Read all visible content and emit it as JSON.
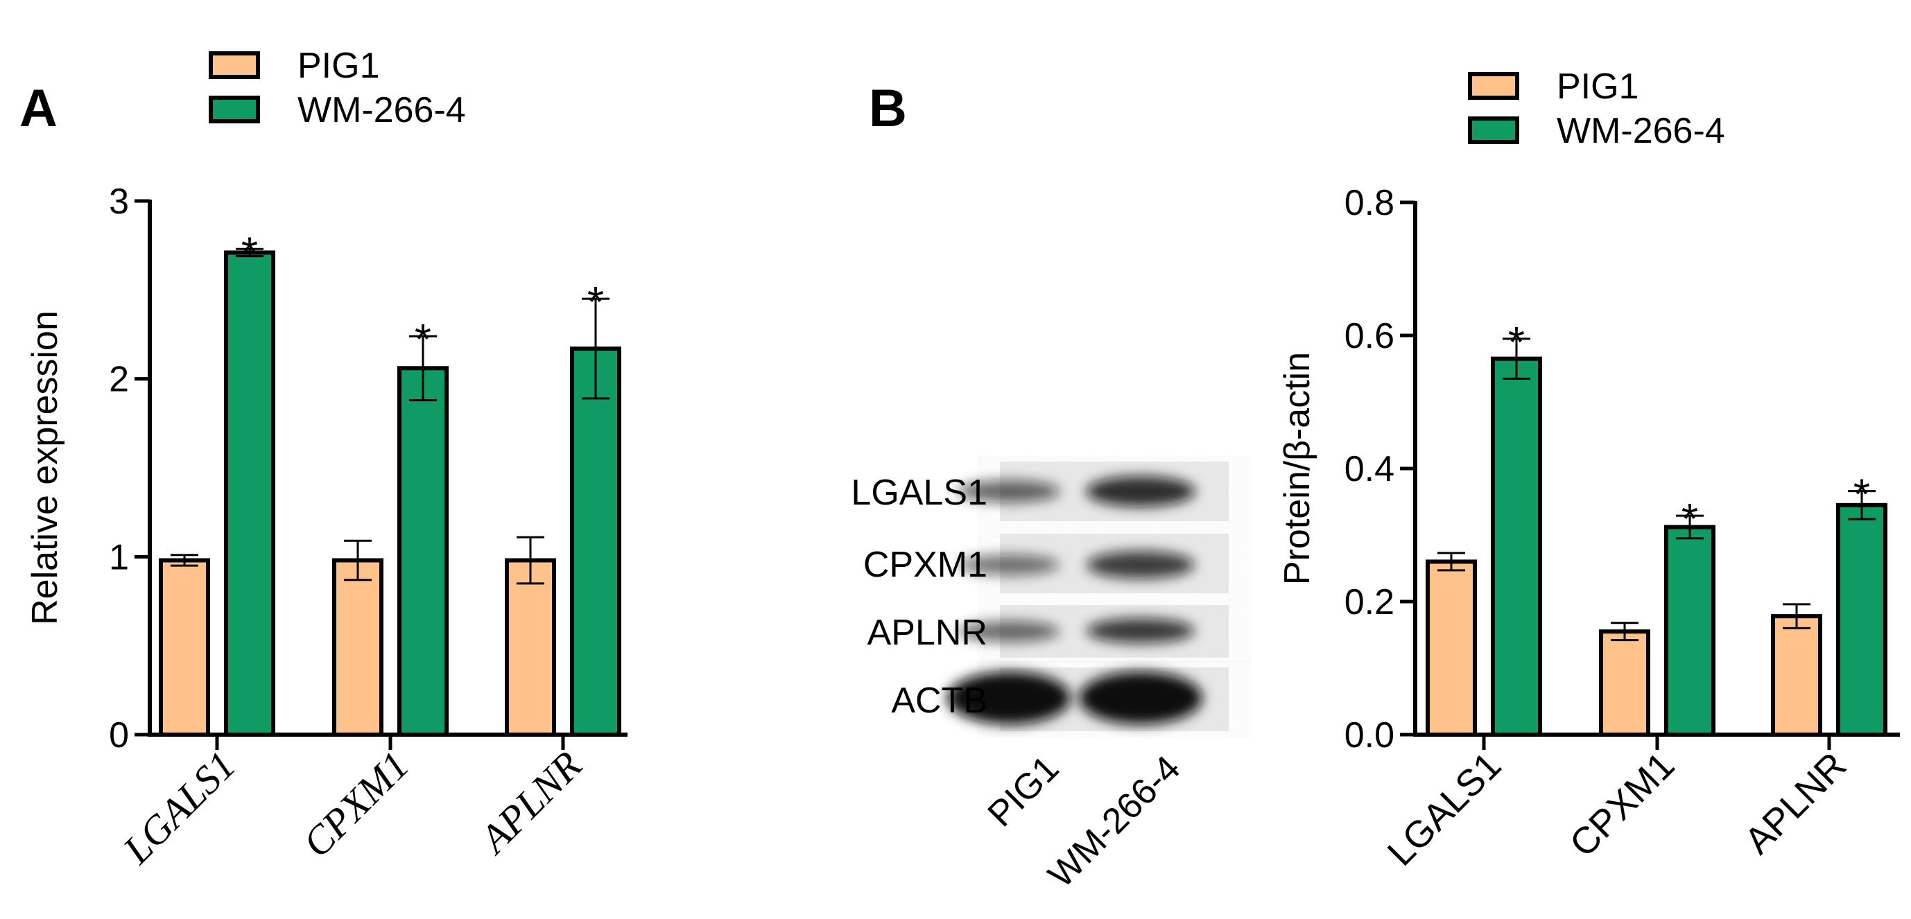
{
  "colors": {
    "pig1": "#fec28a",
    "wm2664": "#109b62",
    "axis": "#000000"
  },
  "panel_labels": {
    "a": "A",
    "b": "B"
  },
  "blot": {
    "rows": [
      "LGALS1",
      "CPXM1",
      "APLNR",
      "ACTB"
    ],
    "lanes": [
      "PIG1",
      "WM-266-4"
    ]
  },
  "chart_data": [
    {
      "type": "bar",
      "panel": "A",
      "title": "",
      "xlabel": "",
      "ylabel": "Relative expression",
      "categories": [
        "LGALS1",
        "CPXM1",
        "APLNR"
      ],
      "ylim": [
        0,
        3
      ],
      "yticks": [
        "0",
        "1",
        "2",
        "3"
      ],
      "grid": false,
      "legend_position": "top-left",
      "series": [
        {
          "name": "PIG1",
          "values": [
            0.98,
            0.98,
            0.98
          ],
          "errors": [
            0.03,
            0.11,
            0.13
          ]
        },
        {
          "name": "WM-266-4",
          "values": [
            2.71,
            2.06,
            2.17
          ],
          "errors": [
            0.02,
            0.18,
            0.28
          ]
        }
      ],
      "annotations": [
        {
          "category": "LGALS1",
          "series": "WM-266-4",
          "text": "*"
        },
        {
          "category": "CPXM1",
          "series": "WM-266-4",
          "text": "*"
        },
        {
          "category": "APLNR",
          "series": "WM-266-4",
          "text": "*"
        }
      ]
    },
    {
      "type": "bar",
      "panel": "B",
      "title": "",
      "xlabel": "",
      "ylabel": "Protein/β-actin",
      "categories": [
        "LGALS1",
        "CPXM1",
        "APLNR"
      ],
      "ylim": [
        0,
        0.8
      ],
      "yticks": [
        "0.0",
        "0.2",
        "0.4",
        "0.6",
        "0.8"
      ],
      "grid": false,
      "legend_position": "top-right",
      "series": [
        {
          "name": "PIG1",
          "values": [
            0.26,
            0.155,
            0.178
          ],
          "errors": [
            0.013,
            0.013,
            0.018
          ]
        },
        {
          "name": "WM-266-4",
          "values": [
            0.565,
            0.312,
            0.345
          ],
          "errors": [
            0.03,
            0.017,
            0.021
          ]
        }
      ],
      "annotations": [
        {
          "category": "LGALS1",
          "series": "WM-266-4",
          "text": "*"
        },
        {
          "category": "CPXM1",
          "series": "WM-266-4",
          "text": "*"
        },
        {
          "category": "APLNR",
          "series": "WM-266-4",
          "text": "*"
        }
      ]
    }
  ]
}
